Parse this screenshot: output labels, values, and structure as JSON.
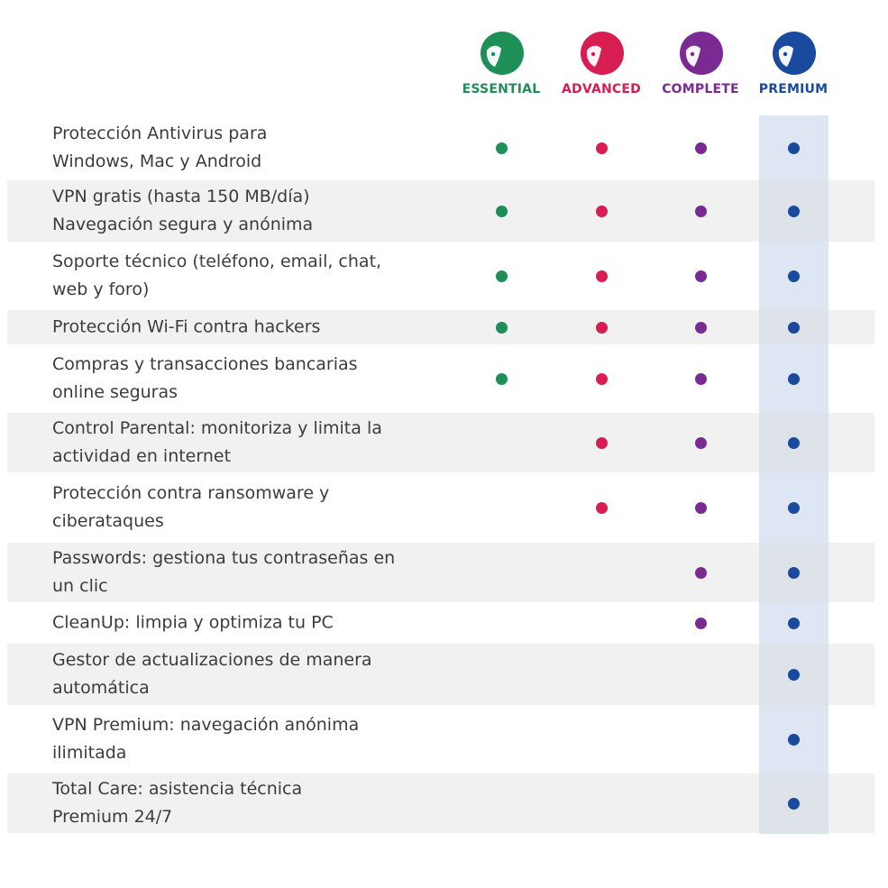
{
  "plans": [
    {
      "name": "ESSENTIAL",
      "color": "#1e8f57",
      "logo_icon": "essential-logo-icon"
    },
    {
      "name": "ADVANCED",
      "color": "#d81d52",
      "logo_icon": "advanced-logo-icon"
    },
    {
      "name": "COMPLETE",
      "color": "#7a2a93",
      "logo_icon": "complete-logo-icon"
    },
    {
      "name": "PREMIUM",
      "color": "#1a4a9e",
      "logo_icon": "premium-logo-icon"
    }
  ],
  "features": [
    {
      "label": "Protección Antivirus para\nWindows, Mac y Android",
      "included": [
        true,
        true,
        true,
        true
      ]
    },
    {
      "label": "VPN gratis (hasta 150 MB/día)\nNavegación segura y anónima",
      "included": [
        true,
        true,
        true,
        true
      ]
    },
    {
      "label": "Soporte técnico (teléfono, email, chat,\nweb y foro)",
      "included": [
        true,
        true,
        true,
        true
      ]
    },
    {
      "label": "Protección Wi-Fi contra hackers",
      "included": [
        true,
        true,
        true,
        true
      ]
    },
    {
      "label": "Compras y transacciones bancarias\nonline seguras",
      "included": [
        true,
        true,
        true,
        true
      ]
    },
    {
      "label": "Control Parental: monitoriza y limita la\nactividad en internet",
      "included": [
        false,
        true,
        true,
        true
      ]
    },
    {
      "label": "Protección contra ransomware y\nciberataques",
      "included": [
        false,
        true,
        true,
        true
      ]
    },
    {
      "label": "Passwords: gestiona tus contraseñas en\nun clic",
      "included": [
        false,
        false,
        true,
        true
      ]
    },
    {
      "label": "CleanUp: limpia y optimiza tu PC",
      "included": [
        false,
        false,
        true,
        true
      ]
    },
    {
      "label": "Gestor de actualizaciones de manera\nautomática",
      "included": [
        false,
        false,
        false,
        true
      ]
    },
    {
      "label": "VPN Premium: navegación anónima\nilimitada",
      "included": [
        false,
        false,
        false,
        true
      ]
    },
    {
      "label": "Total Care: asistencia técnica\nPremium 24/7",
      "included": [
        false,
        false,
        false,
        true
      ]
    }
  ]
}
